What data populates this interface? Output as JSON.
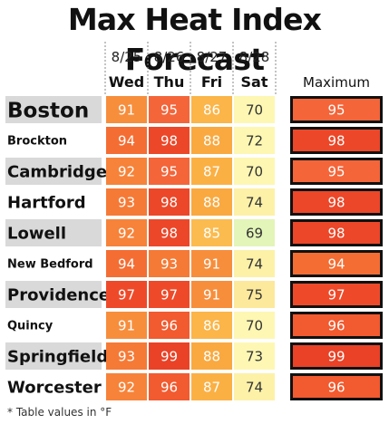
{
  "chart_data": {
    "type": "table",
    "title": "Max Heat Index Forecast",
    "dates": [
      "8/25",
      "8/26",
      "8/27",
      "8/28"
    ],
    "days": [
      "Wed",
      "Thu",
      "Fri",
      "Sat"
    ],
    "max_header": "Maximum",
    "rows": [
      {
        "city": "Boston",
        "values": [
          91,
          95,
          86,
          70
        ],
        "max": 95,
        "size": "large",
        "shaded": true
      },
      {
        "city": "Brockton",
        "values": [
          94,
          98,
          88,
          72
        ],
        "max": 98,
        "size": "small",
        "shaded": false
      },
      {
        "city": "Cambridge",
        "values": [
          92,
          95,
          87,
          70
        ],
        "max": 95,
        "size": "medium",
        "shaded": true
      },
      {
        "city": "Hartford",
        "values": [
          93,
          98,
          88,
          74
        ],
        "max": 98,
        "size": "medium",
        "shaded": false
      },
      {
        "city": "Lowell",
        "values": [
          92,
          98,
          85,
          69
        ],
        "max": 98,
        "size": "medium",
        "shaded": true
      },
      {
        "city": "New Bedford",
        "values": [
          94,
          93,
          91,
          74
        ],
        "max": 94,
        "size": "small",
        "shaded": false
      },
      {
        "city": "Providence",
        "values": [
          97,
          97,
          91,
          75
        ],
        "max": 97,
        "size": "medium",
        "shaded": true
      },
      {
        "city": "Quincy",
        "values": [
          91,
          96,
          86,
          70
        ],
        "max": 96,
        "size": "small",
        "shaded": false
      },
      {
        "city": "Springfield",
        "values": [
          93,
          99,
          88,
          73
        ],
        "max": 99,
        "size": "medium",
        "shaded": true
      },
      {
        "city": "Worcester",
        "values": [
          92,
          96,
          87,
          74
        ],
        "max": 96,
        "size": "medium",
        "shaded": false
      }
    ],
    "colors": {
      "69": "#e3f5b8",
      "70": "#fdf7b3",
      "72": "#fdf7b3",
      "73": "#fdf7b3",
      "74": "#fdf1a8",
      "75": "#fde99c",
      "85": "#fbbb4f",
      "86": "#fbb548",
      "87": "#fbb044",
      "88": "#f9a940",
      "91": "#f78e3c",
      "92": "#f68339",
      "93": "#f57a36",
      "94": "#f46d33",
      "95": "#f4653a",
      "96": "#f25a2f",
      "97": "#ee4a2a",
      "98": "#ec4729",
      "99": "#e94227",
      "row_shade": "#d9d9d9"
    },
    "footnote": "* Table values in °F"
  }
}
